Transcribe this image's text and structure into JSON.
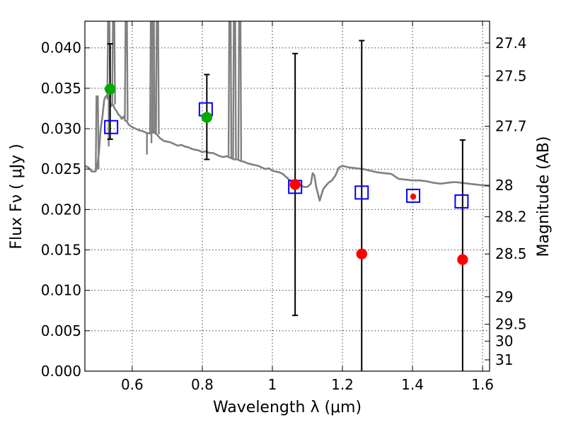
{
  "chart_data": {
    "type": "scatter",
    "xlabel": "Wavelength  λ (μm)",
    "ylabel": "Flux  Fν  ( μJy )",
    "ylabel_right": "Magnitude (AB)",
    "xlim": [
      0.465,
      1.62
    ],
    "ylim": [
      0.0,
      0.0433
    ],
    "grid": true,
    "x_ticks": [
      0.6,
      0.8,
      1.0,
      1.2,
      1.4,
      1.6
    ],
    "x_tick_labels": [
      "0.6",
      "0.8",
      "1",
      "1.2",
      "1.4",
      "1.6"
    ],
    "y_ticks": [
      0.0,
      0.005,
      0.01,
      0.015,
      0.02,
      0.025,
      0.03,
      0.035,
      0.04
    ],
    "y_tick_labels": [
      "0.000",
      "0.005",
      "0.010",
      "0.015",
      "0.020",
      "0.025",
      "0.030",
      "0.035",
      "0.040"
    ],
    "right_ticks": [
      {
        "label": "27.4",
        "flux": 0.0406
      },
      {
        "label": "27.5",
        "flux": 0.0365
      },
      {
        "label": "27.7",
        "flux": 0.0303
      },
      {
        "label": "28",
        "flux": 0.023
      },
      {
        "label": "28.2",
        "flux": 0.0191
      },
      {
        "label": "28.5",
        "flux": 0.0145
      },
      {
        "label": "29",
        "flux": 0.0092
      },
      {
        "label": "29.5",
        "flux": 0.0058
      },
      {
        "label": "30",
        "flux": 0.0037
      },
      {
        "label": "31",
        "flux": 0.0014
      }
    ],
    "colors": {
      "sed_line": "#808080",
      "model_squares": "#0000ff",
      "green_points": "#00aa00",
      "red_points": "#ff0000",
      "error_bars": "#000000",
      "grid": "#000000"
    },
    "series": [
      {
        "kind": "sed_model_spectrum",
        "color": "#808080",
        "points": [
          [
            0.465,
            0.0254
          ],
          [
            0.475,
            0.0252
          ],
          [
            0.485,
            0.0247
          ],
          [
            0.495,
            0.0247
          ],
          [
            0.5,
            0.0252
          ],
          [
            0.505,
            0.027
          ],
          [
            0.51,
            0.03
          ],
          [
            0.515,
            0.0315
          ],
          [
            0.52,
            0.0335
          ],
          [
            0.523,
            0.0339
          ],
          [
            0.527,
            0.0341
          ],
          [
            0.53,
            0.0337
          ],
          [
            0.533,
            0.0341
          ],
          [
            0.537,
            0.0332
          ],
          [
            0.54,
            0.0328
          ],
          [
            0.545,
            0.033
          ],
          [
            0.55,
            0.0325
          ],
          [
            0.555,
            0.0322
          ],
          [
            0.56,
            0.0318
          ],
          [
            0.565,
            0.0316
          ],
          [
            0.57,
            0.0312
          ],
          [
            0.575,
            0.0315
          ],
          [
            0.58,
            0.031
          ],
          [
            0.585,
            0.0309
          ],
          [
            0.59,
            0.0305
          ],
          [
            0.6,
            0.0302
          ],
          [
            0.61,
            0.03
          ],
          [
            0.62,
            0.0298
          ],
          [
            0.63,
            0.0297
          ],
          [
            0.64,
            0.0295
          ],
          [
            0.65,
            0.0294
          ],
          [
            0.66,
            0.0296
          ],
          [
            0.67,
            0.0293
          ],
          [
            0.68,
            0.0288
          ],
          [
            0.69,
            0.0285
          ],
          [
            0.7,
            0.0284
          ],
          [
            0.71,
            0.0283
          ],
          [
            0.72,
            0.0281
          ],
          [
            0.73,
            0.0279
          ],
          [
            0.74,
            0.028
          ],
          [
            0.75,
            0.0278
          ],
          [
            0.76,
            0.0277
          ],
          [
            0.77,
            0.0275
          ],
          [
            0.78,
            0.0274
          ],
          [
            0.79,
            0.0273
          ],
          [
            0.8,
            0.0271
          ],
          [
            0.81,
            0.0272
          ],
          [
            0.82,
            0.027
          ],
          [
            0.83,
            0.027
          ],
          [
            0.84,
            0.0268
          ],
          [
            0.85,
            0.0266
          ],
          [
            0.86,
            0.0265
          ],
          [
            0.87,
            0.0266
          ],
          [
            0.88,
            0.0264
          ],
          [
            0.89,
            0.0262
          ],
          [
            0.9,
            0.0262
          ],
          [
            0.91,
            0.026
          ],
          [
            0.92,
            0.0259
          ],
          [
            0.93,
            0.0257
          ],
          [
            0.94,
            0.0256
          ],
          [
            0.95,
            0.0255
          ],
          [
            0.96,
            0.0254
          ],
          [
            0.97,
            0.0252
          ],
          [
            0.98,
            0.025
          ],
          [
            0.99,
            0.0251
          ],
          [
            1.0,
            0.0248
          ],
          [
            1.01,
            0.0247
          ],
          [
            1.02,
            0.0246
          ],
          [
            1.03,
            0.0244
          ],
          [
            1.04,
            0.024
          ],
          [
            1.05,
            0.0236
          ],
          [
            1.06,
            0.0233
          ],
          [
            1.07,
            0.0232
          ],
          [
            1.08,
            0.023
          ],
          [
            1.09,
            0.0228
          ],
          [
            1.1,
            0.0228
          ],
          [
            1.11,
            0.0232
          ],
          [
            1.115,
            0.0245
          ],
          [
            1.12,
            0.0242
          ],
          [
            1.125,
            0.0228
          ],
          [
            1.13,
            0.022
          ],
          [
            1.135,
            0.0211
          ],
          [
            1.14,
            0.0218
          ],
          [
            1.145,
            0.0225
          ],
          [
            1.15,
            0.0228
          ],
          [
            1.16,
            0.0233
          ],
          [
            1.17,
            0.0236
          ],
          [
            1.18,
            0.0242
          ],
          [
            1.19,
            0.0252
          ],
          [
            1.2,
            0.0254
          ],
          [
            1.22,
            0.0252
          ],
          [
            1.24,
            0.0251
          ],
          [
            1.26,
            0.025
          ],
          [
            1.28,
            0.0248
          ],
          [
            1.3,
            0.0246
          ],
          [
            1.32,
            0.0245
          ],
          [
            1.34,
            0.0244
          ],
          [
            1.36,
            0.0238
          ],
          [
            1.38,
            0.0237
          ],
          [
            1.4,
            0.0236
          ],
          [
            1.42,
            0.0236
          ],
          [
            1.44,
            0.0235
          ],
          [
            1.46,
            0.0233
          ],
          [
            1.48,
            0.0232
          ],
          [
            1.5,
            0.0233
          ],
          [
            1.52,
            0.0234
          ],
          [
            1.54,
            0.0233
          ],
          [
            1.56,
            0.0232
          ],
          [
            1.58,
            0.0231
          ],
          [
            1.6,
            0.023
          ],
          [
            1.62,
            0.0229
          ]
        ],
        "emission_spikes": [
          {
            "x": 0.5,
            "y_top": 0.034,
            "y_base": 0.025
          },
          {
            "x": 0.533,
            "y_top": 0.0433,
            "y_base": 0.0337
          },
          {
            "x": 0.547,
            "y_top": 0.0433,
            "y_base": 0.033
          },
          {
            "x": 0.583,
            "y_top": 0.0433,
            "y_base": 0.031
          },
          {
            "x": 0.655,
            "y_top": 0.0433,
            "y_base": 0.0294
          },
          {
            "x": 0.66,
            "y_top": 0.0433,
            "y_base": 0.0294
          },
          {
            "x": 0.672,
            "y_top": 0.0433,
            "y_base": 0.0293
          },
          {
            "x": 0.879,
            "y_top": 0.0433,
            "y_base": 0.0264
          },
          {
            "x": 0.892,
            "y_top": 0.0433,
            "y_base": 0.0262
          },
          {
            "x": 0.907,
            "y_top": 0.0433,
            "y_base": 0.0261
          }
        ],
        "absorption_dips": [
          {
            "x": 0.505,
            "y_bottom": 0.0274,
            "y_base": 0.027
          },
          {
            "x": 0.533,
            "y_bottom": 0.0278,
            "y_base": 0.0338
          },
          {
            "x": 0.642,
            "y_bottom": 0.0268,
            "y_base": 0.0295
          },
          {
            "x": 0.655,
            "y_bottom": 0.0282,
            "y_base": 0.0294
          }
        ]
      },
      {
        "kind": "model_magnitudes",
        "marker": "square",
        "color": "#0000ff",
        "points": [
          [
            0.54,
            0.0302
          ],
          [
            0.81,
            0.0324
          ],
          [
            1.065,
            0.0228
          ],
          [
            1.255,
            0.0221
          ],
          [
            1.402,
            0.0217
          ],
          [
            1.54,
            0.021
          ]
        ]
      },
      {
        "kind": "observed_detections",
        "marker": "circle",
        "color": "#00aa00",
        "points": [
          [
            0.537,
            0.0349
          ],
          [
            0.813,
            0.0314
          ]
        ]
      },
      {
        "kind": "observed_measurements",
        "marker": "circle",
        "color": "#ff0000",
        "points": [
          [
            1.065,
            0.0231
          ],
          [
            1.255,
            0.0145
          ],
          [
            1.402,
            0.0216
          ],
          [
            1.543,
            0.0138
          ]
        ]
      },
      {
        "kind": "error_bars",
        "color": "#000000",
        "bars": [
          {
            "x": 0.537,
            "low": 0.0287,
            "high": 0.0405
          },
          {
            "x": 0.813,
            "low": 0.0262,
            "high": 0.0367
          },
          {
            "x": 1.065,
            "low": 0.0069,
            "high": 0.0393
          },
          {
            "x": 1.255,
            "low": 0.0,
            "high": 0.0409
          },
          {
            "x": 1.543,
            "low": 0.0,
            "high": 0.0286
          }
        ]
      }
    ]
  }
}
